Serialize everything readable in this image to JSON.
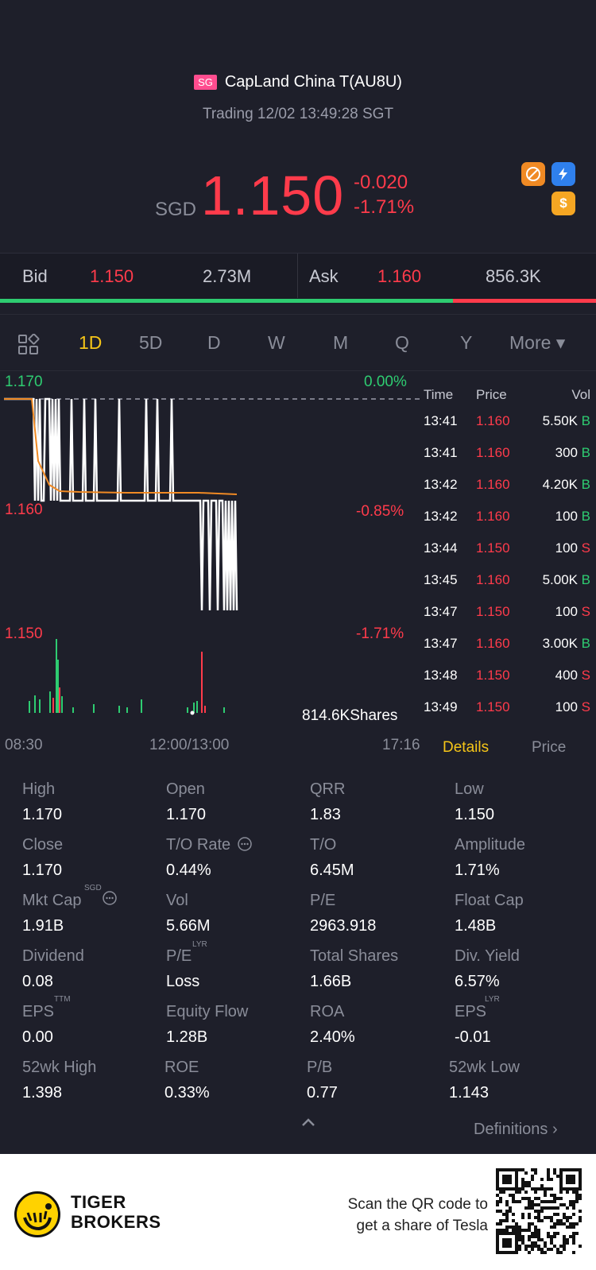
{
  "header": {
    "market_badge": "SG",
    "stock_name": "CapLand China T(AU8U)",
    "status": "Trading 12/02 13:49:28 SGT",
    "currency": "SGD",
    "price": "1.150",
    "change": "-0.020",
    "change_pct": "-1.71%",
    "icon_coin": "$"
  },
  "bidask": {
    "bid_label": "Bid",
    "bid_price": "1.150",
    "bid_vol": "2.73M",
    "ask_label": "Ask",
    "ask_price": "1.160",
    "ask_vol": "856.3K",
    "bid_ratio": 0.76
  },
  "tabs": [
    "1D",
    "5D",
    "D",
    "W",
    "M",
    "Q",
    "Y",
    "More ▾"
  ],
  "chart": {
    "price_high": "1.170",
    "pct_high": "0.00%",
    "price_mid": "1.160",
    "pct_mid": "-0.85%",
    "price_low": "1.150",
    "pct_low": "-1.71%",
    "volume_label": "814.6KShares",
    "time_start": "08:30",
    "time_mid": "12:00/13:00",
    "time_end": "17:16"
  },
  "ticks": {
    "head_time": "Time",
    "head_price": "Price",
    "head_vol": "Vol",
    "rows": [
      {
        "time": "13:41",
        "price": "1.160",
        "vol": "5.50K",
        "side": "B"
      },
      {
        "time": "13:41",
        "price": "1.160",
        "vol": "300",
        "side": "B"
      },
      {
        "time": "13:42",
        "price": "1.160",
        "vol": "4.20K",
        "side": "B"
      },
      {
        "time": "13:42",
        "price": "1.160",
        "vol": "100",
        "side": "B"
      },
      {
        "time": "13:44",
        "price": "1.150",
        "vol": "100",
        "side": "S"
      },
      {
        "time": "13:45",
        "price": "1.160",
        "vol": "5.00K",
        "side": "B"
      },
      {
        "time": "13:47",
        "price": "1.150",
        "vol": "100",
        "side": "S"
      },
      {
        "time": "13:47",
        "price": "1.160",
        "vol": "3.00K",
        "side": "B"
      },
      {
        "time": "13:48",
        "price": "1.150",
        "vol": "400",
        "side": "S"
      },
      {
        "time": "13:49",
        "price": "1.150",
        "vol": "100",
        "side": "S"
      }
    ],
    "tab_details": "Details",
    "tab_price": "Price"
  },
  "stats": [
    {
      "label": "High",
      "value": "1.170"
    },
    {
      "label": "Open",
      "value": "1.170"
    },
    {
      "label": "QRR",
      "value": "1.83"
    },
    {
      "label": "Low",
      "value": "1.150"
    },
    {
      "label": "Close",
      "value": "1.170"
    },
    {
      "label": "T/O Rate",
      "value": "0.44%"
    },
    {
      "label": "T/O",
      "value": "6.45M"
    },
    {
      "label": "Amplitude",
      "value": "1.71%"
    },
    {
      "label": "Mkt Cap",
      "value": "1.91B"
    },
    {
      "label": "Vol",
      "value": "5.66M"
    },
    {
      "label": "P/E",
      "value": "2963.918"
    },
    {
      "label": "Float Cap",
      "value": "1.48B"
    },
    {
      "label": "Dividend",
      "value": "0.08"
    },
    {
      "label": "P/E",
      "value": "Loss"
    },
    {
      "label": "Total Shares",
      "value": "1.66B"
    },
    {
      "label": "Div. Yield",
      "value": "6.57%"
    },
    {
      "label": "EPS",
      "value": "0.00"
    },
    {
      "label": "Equity Flow",
      "value": "1.28B"
    },
    {
      "label": "ROA",
      "value": "2.40%"
    },
    {
      "label": "EPS",
      "value": "-0.01"
    },
    {
      "label": "52wk High",
      "value": "1.398"
    },
    {
      "label": "ROE",
      "value": "0.33%"
    },
    {
      "label": "P/B",
      "value": "0.77"
    },
    {
      "label": "52wk Low",
      "value": "1.143"
    }
  ],
  "stat_sups": {
    "mkt_cap": "SGD",
    "pe_lyr": "LYR",
    "eps_ttm": "TTM",
    "eps_lyr": "LYR"
  },
  "definitions": "Definitions",
  "footer": {
    "brand_line1": "TIGER",
    "brand_line2": "BROKERS",
    "promo_line1": "Scan the QR code to",
    "promo_line2": "get a share of Tesla"
  },
  "colors": {
    "up": "#2ecc71",
    "down": "#ff3b4b",
    "accent": "#f5c518",
    "bg": "#1e1f2a"
  }
}
